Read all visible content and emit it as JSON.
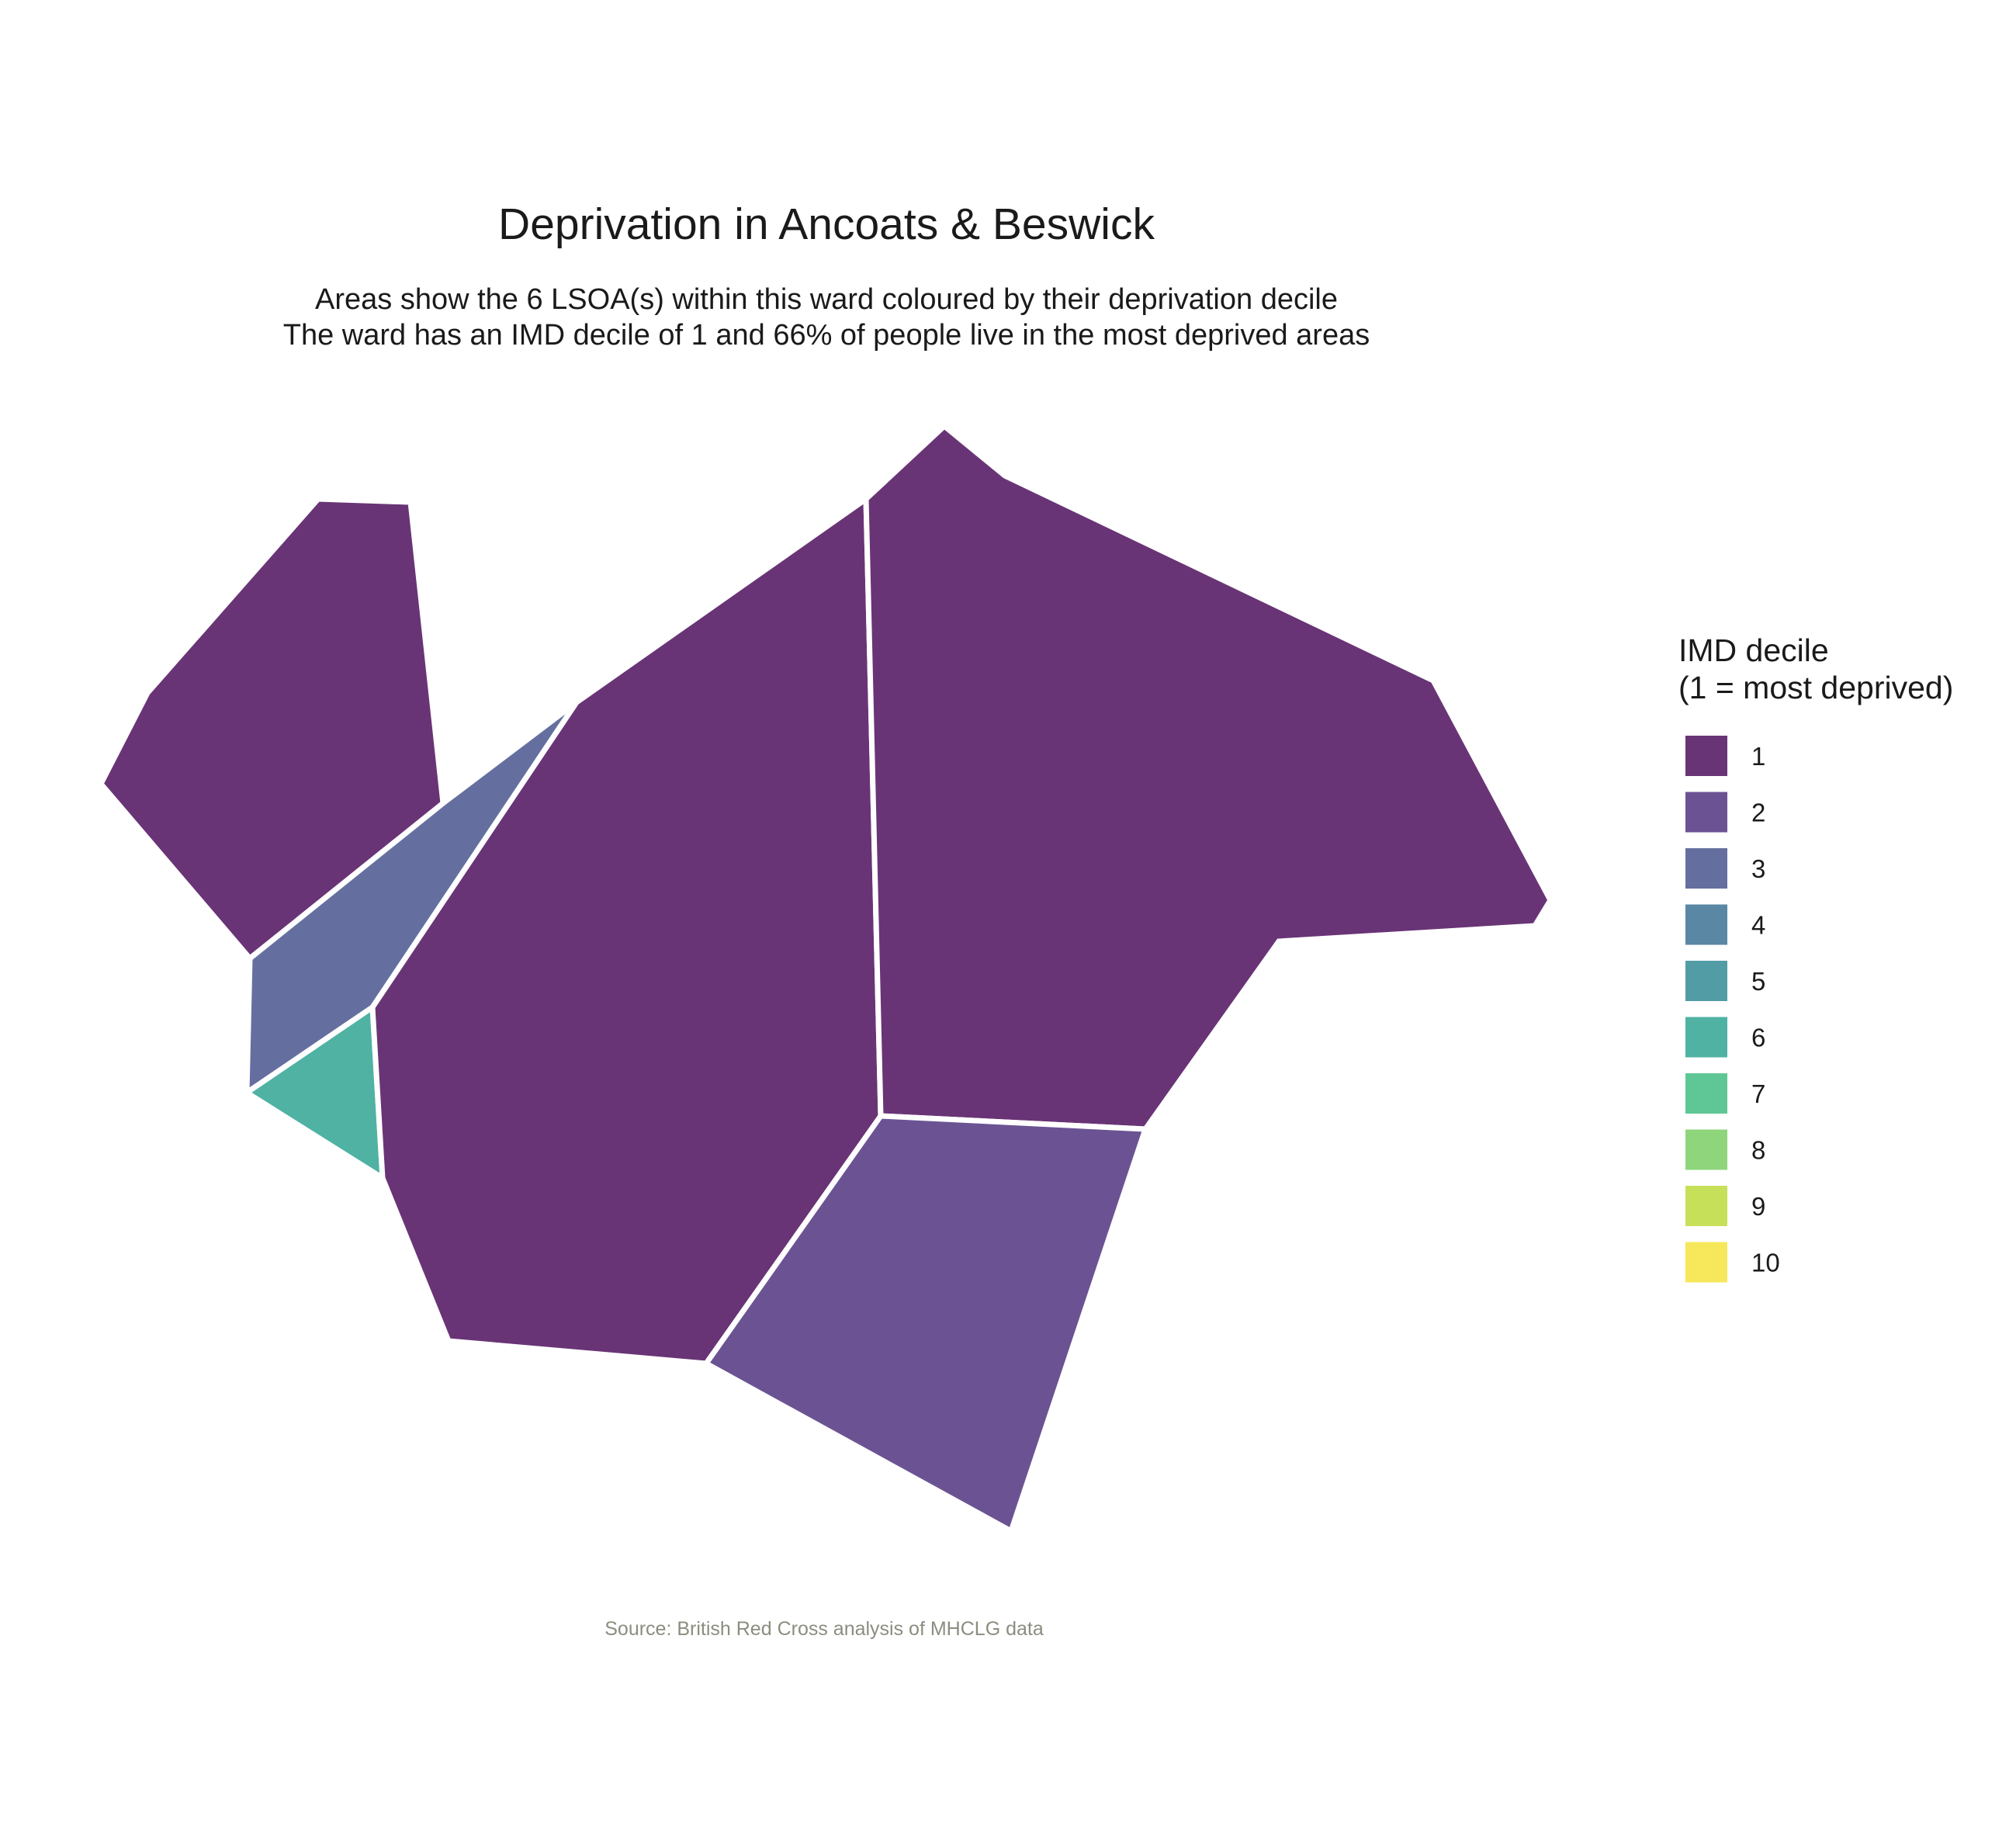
{
  "title": "Deprivation in Ancoats & Beswick",
  "subtitle_line1": "Areas show the 6 LSOA(s) within this ward coloured by their deprivation decile",
  "subtitle_line2": "The ward has an IMD decile of 1 and 66% of people live in the most deprived areas",
  "caption": "Source: British Red Cross analysis of MHCLG data",
  "legend": {
    "title_line1": "IMD decile",
    "title_line2": "(1 = most deprived)",
    "items": [
      {
        "label": "1",
        "color": "#693476"
      },
      {
        "label": "2",
        "color": "#6b5393"
      },
      {
        "label": "3",
        "color": "#656f9f"
      },
      {
        "label": "4",
        "color": "#5a87a4"
      },
      {
        "label": "5",
        "color": "#529ca6"
      },
      {
        "label": "6",
        "color": "#4fb2a3"
      },
      {
        "label": "7",
        "color": "#5fc795"
      },
      {
        "label": "8",
        "color": "#8ed57c"
      },
      {
        "label": "9",
        "color": "#c7e05a"
      },
      {
        "label": "10",
        "color": "#f6e85a"
      }
    ]
  },
  "areas": [
    {
      "name": "lsoa-northwest",
      "decile": 1
    },
    {
      "name": "lsoa-strip",
      "decile": 3
    },
    {
      "name": "lsoa-triangle",
      "decile": 6
    },
    {
      "name": "lsoa-central",
      "decile": 1
    },
    {
      "name": "lsoa-east",
      "decile": 1
    },
    {
      "name": "lsoa-south",
      "decile": 2
    }
  ]
}
